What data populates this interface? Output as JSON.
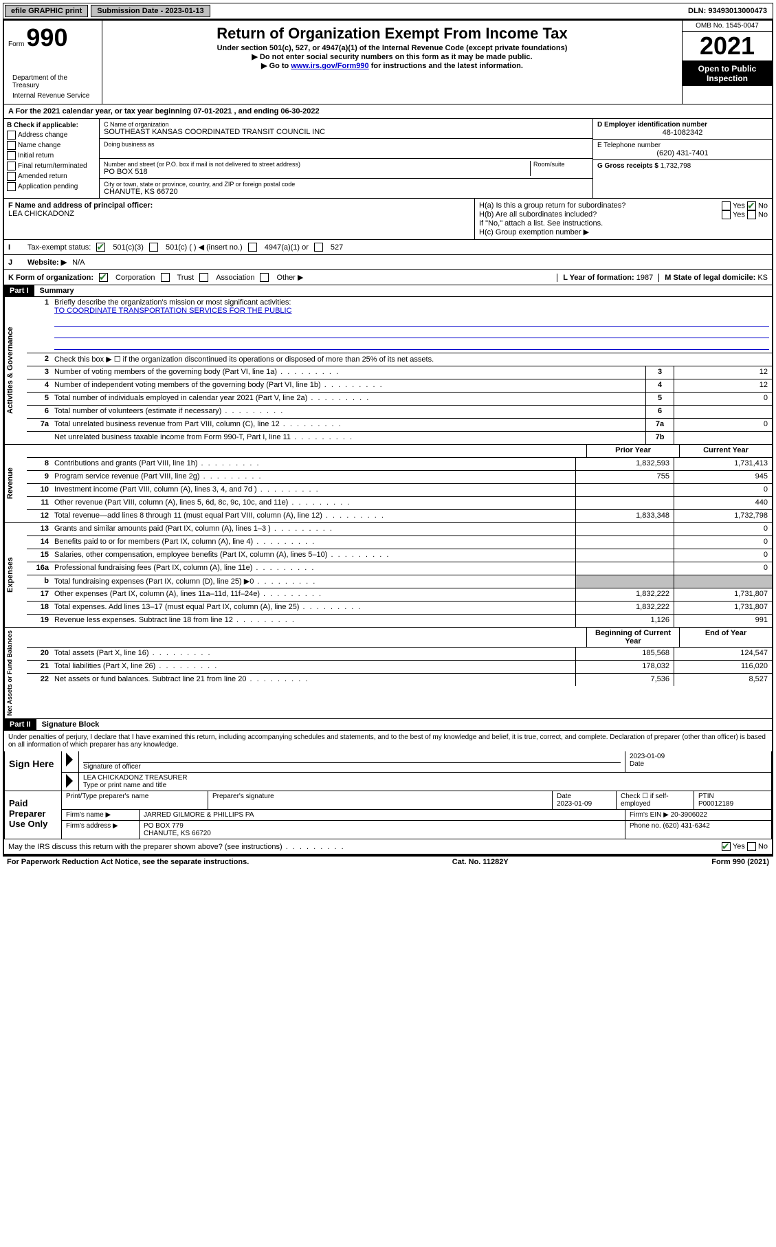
{
  "topbar": {
    "efile": "efile GRAPHIC print",
    "submission_label": "Submission Date - 2023-01-13",
    "dln": "DLN: 93493013000473"
  },
  "header": {
    "form_prefix": "Form",
    "form_number": "990",
    "title": "Return of Organization Exempt From Income Tax",
    "subtitle": "Under section 501(c), 527, or 4947(a)(1) of the Internal Revenue Code (except private foundations)",
    "note1": "▶ Do not enter social security numbers on this form as it may be made public.",
    "note2_pre": "▶ Go to ",
    "note2_link": "www.irs.gov/Form990",
    "note2_post": " for instructions and the latest information.",
    "omb": "OMB No. 1545-0047",
    "year": "2021",
    "open_public": "Open to Public Inspection",
    "dept": "Department of the Treasury",
    "irs": "Internal Revenue Service"
  },
  "section_a": {
    "line_a": "A For the 2021 calendar year, or tax year beginning 07-01-2021   , and ending 06-30-2022",
    "b_label": "B Check if applicable:",
    "b_items": [
      "Address change",
      "Name change",
      "Initial return",
      "Final return/terminated",
      "Amended return",
      "Application pending"
    ],
    "c_label": "C Name of organization",
    "c_name": "SOUTHEAST KANSAS COORDINATED TRANSIT COUNCIL INC",
    "dba_label": "Doing business as",
    "street_label": "Number and street (or P.O. box if mail is not delivered to street address)",
    "street": "PO BOX 518",
    "room_label": "Room/suite",
    "city_label": "City or town, state or province, country, and ZIP or foreign postal code",
    "city": "CHANUTE, KS  66720",
    "d_label": "D Employer identification number",
    "d_ein": "48-1082342",
    "e_label": "E Telephone number",
    "e_phone": "(620) 431-7401",
    "g_label": "G Gross receipts $",
    "g_val": "1,732,798",
    "f_label": "F Name and address of principal officer:",
    "f_name": "LEA CHICKADONZ",
    "ha": "H(a)  Is this a group return for subordinates?",
    "hb": "H(b)  Are all subordinates included?",
    "hb_note": "If \"No,\" attach a list. See instructions.",
    "hc": "H(c)  Group exemption number ▶",
    "yes": "Yes",
    "no": "No",
    "i_label": "Tax-exempt status:",
    "i_501c3": "501(c)(3)",
    "i_501c": "501(c) (  ) ◀ (insert no.)",
    "i_4947": "4947(a)(1) or",
    "i_527": "527",
    "j_label": "Website: ▶",
    "j_val": "N/A",
    "k_label": "K Form of organization:",
    "k_corp": "Corporation",
    "k_trust": "Trust",
    "k_assoc": "Association",
    "k_other": "Other ▶",
    "l_label": "L Year of formation: ",
    "l_val": "1987",
    "m_label": "M State of legal domicile: ",
    "m_val": "KS"
  },
  "part1": {
    "header": "Part I",
    "title": "Summary",
    "line1_label": "Briefly describe the organization's mission or most significant activities:",
    "line1_val": "TO COORDINATE TRANSPORTATION SERVICES FOR THE PUBLIC",
    "line2": "Check this box ▶ ☐  if the organization discontinued its operations or disposed of more than 25% of its net assets.",
    "governance_rows": [
      {
        "n": "3",
        "desc": "Number of voting members of the governing body (Part VI, line 1a)",
        "box": "3",
        "val": "12"
      },
      {
        "n": "4",
        "desc": "Number of independent voting members of the governing body (Part VI, line 1b)",
        "box": "4",
        "val": "12"
      },
      {
        "n": "5",
        "desc": "Total number of individuals employed in calendar year 2021 (Part V, line 2a)",
        "box": "5",
        "val": "0"
      },
      {
        "n": "6",
        "desc": "Total number of volunteers (estimate if necessary)",
        "box": "6",
        "val": ""
      },
      {
        "n": "7a",
        "desc": "Total unrelated business revenue from Part VIII, column (C), line 12",
        "box": "7a",
        "val": "0"
      },
      {
        "n": "",
        "desc": "Net unrelated business taxable income from Form 990-T, Part I, line 11",
        "box": "7b",
        "val": ""
      }
    ],
    "col_headers": {
      "prior": "Prior Year",
      "current": "Current Year",
      "begin": "Beginning of Current Year",
      "end": "End of Year"
    },
    "revenue_rows": [
      {
        "n": "8",
        "desc": "Contributions and grants (Part VIII, line 1h)",
        "prior": "1,832,593",
        "cur": "1,731,413"
      },
      {
        "n": "9",
        "desc": "Program service revenue (Part VIII, line 2g)",
        "prior": "755",
        "cur": "945"
      },
      {
        "n": "10",
        "desc": "Investment income (Part VIII, column (A), lines 3, 4, and 7d )",
        "prior": "",
        "cur": "0"
      },
      {
        "n": "11",
        "desc": "Other revenue (Part VIII, column (A), lines 5, 6d, 8c, 9c, 10c, and 11e)",
        "prior": "",
        "cur": "440"
      },
      {
        "n": "12",
        "desc": "Total revenue—add lines 8 through 11 (must equal Part VIII, column (A), line 12)",
        "prior": "1,833,348",
        "cur": "1,732,798"
      }
    ],
    "expense_rows": [
      {
        "n": "13",
        "desc": "Grants and similar amounts paid (Part IX, column (A), lines 1–3 )",
        "prior": "",
        "cur": "0"
      },
      {
        "n": "14",
        "desc": "Benefits paid to or for members (Part IX, column (A), line 4)",
        "prior": "",
        "cur": "0"
      },
      {
        "n": "15",
        "desc": "Salaries, other compensation, employee benefits (Part IX, column (A), lines 5–10)",
        "prior": "",
        "cur": "0"
      },
      {
        "n": "16a",
        "desc": "Professional fundraising fees (Part IX, column (A), line 11e)",
        "prior": "",
        "cur": "0"
      },
      {
        "n": "b",
        "desc": "Total fundraising expenses (Part IX, column (D), line 25) ▶0",
        "prior": "SHADE",
        "cur": "SHADE"
      },
      {
        "n": "17",
        "desc": "Other expenses (Part IX, column (A), lines 11a–11d, 11f–24e)",
        "prior": "1,832,222",
        "cur": "1,731,807"
      },
      {
        "n": "18",
        "desc": "Total expenses. Add lines 13–17 (must equal Part IX, column (A), line 25)",
        "prior": "1,832,222",
        "cur": "1,731,807"
      },
      {
        "n": "19",
        "desc": "Revenue less expenses. Subtract line 18 from line 12",
        "prior": "1,126",
        "cur": "991"
      }
    ],
    "netassets_rows": [
      {
        "n": "20",
        "desc": "Total assets (Part X, line 16)",
        "prior": "185,568",
        "cur": "124,547"
      },
      {
        "n": "21",
        "desc": "Total liabilities (Part X, line 26)",
        "prior": "178,032",
        "cur": "116,020"
      },
      {
        "n": "22",
        "desc": "Net assets or fund balances. Subtract line 21 from line 20",
        "prior": "7,536",
        "cur": "8,527"
      }
    ],
    "side_labels": {
      "gov": "Activities & Governance",
      "rev": "Revenue",
      "exp": "Expenses",
      "net": "Net Assets or Fund Balances"
    }
  },
  "part2": {
    "header": "Part II",
    "title": "Signature Block",
    "penalty": "Under penalties of perjury, I declare that I have examined this return, including accompanying schedules and statements, and to the best of my knowledge and belief, it is true, correct, and complete. Declaration of preparer (other than officer) is based on all information of which preparer has any knowledge.",
    "sign_here": "Sign Here",
    "sig_officer": "Signature of officer",
    "sig_date": "2023-01-09",
    "date_label": "Date",
    "officer_name": "LEA CHICKADONZ  TREASURER",
    "type_name": "Type or print name and title",
    "paid": "Paid Preparer Use Only",
    "prep_name_label": "Print/Type preparer's name",
    "prep_sig_label": "Preparer's signature",
    "prep_date": "2023-01-09",
    "check_if": "Check ☐ if self-employed",
    "ptin_label": "PTIN",
    "ptin": "P00012189",
    "firm_name_label": "Firm's name    ▶",
    "firm_name": "JARRED GILMORE & PHILLIPS PA",
    "firm_ein_label": "Firm's EIN ▶",
    "firm_ein": "20-3906022",
    "firm_addr_label": "Firm's address ▶",
    "firm_addr1": "PO BOX 779",
    "firm_addr2": "CHANUTE, KS  66720",
    "phone_label": "Phone no.",
    "phone": "(620) 431-6342",
    "may_irs": "May the IRS discuss this return with the preparer shown above? (see instructions)"
  },
  "footer": {
    "paperwork": "For Paperwork Reduction Act Notice, see the separate instructions.",
    "cat": "Cat. No. 11282Y",
    "form": "Form 990 (2021)"
  }
}
